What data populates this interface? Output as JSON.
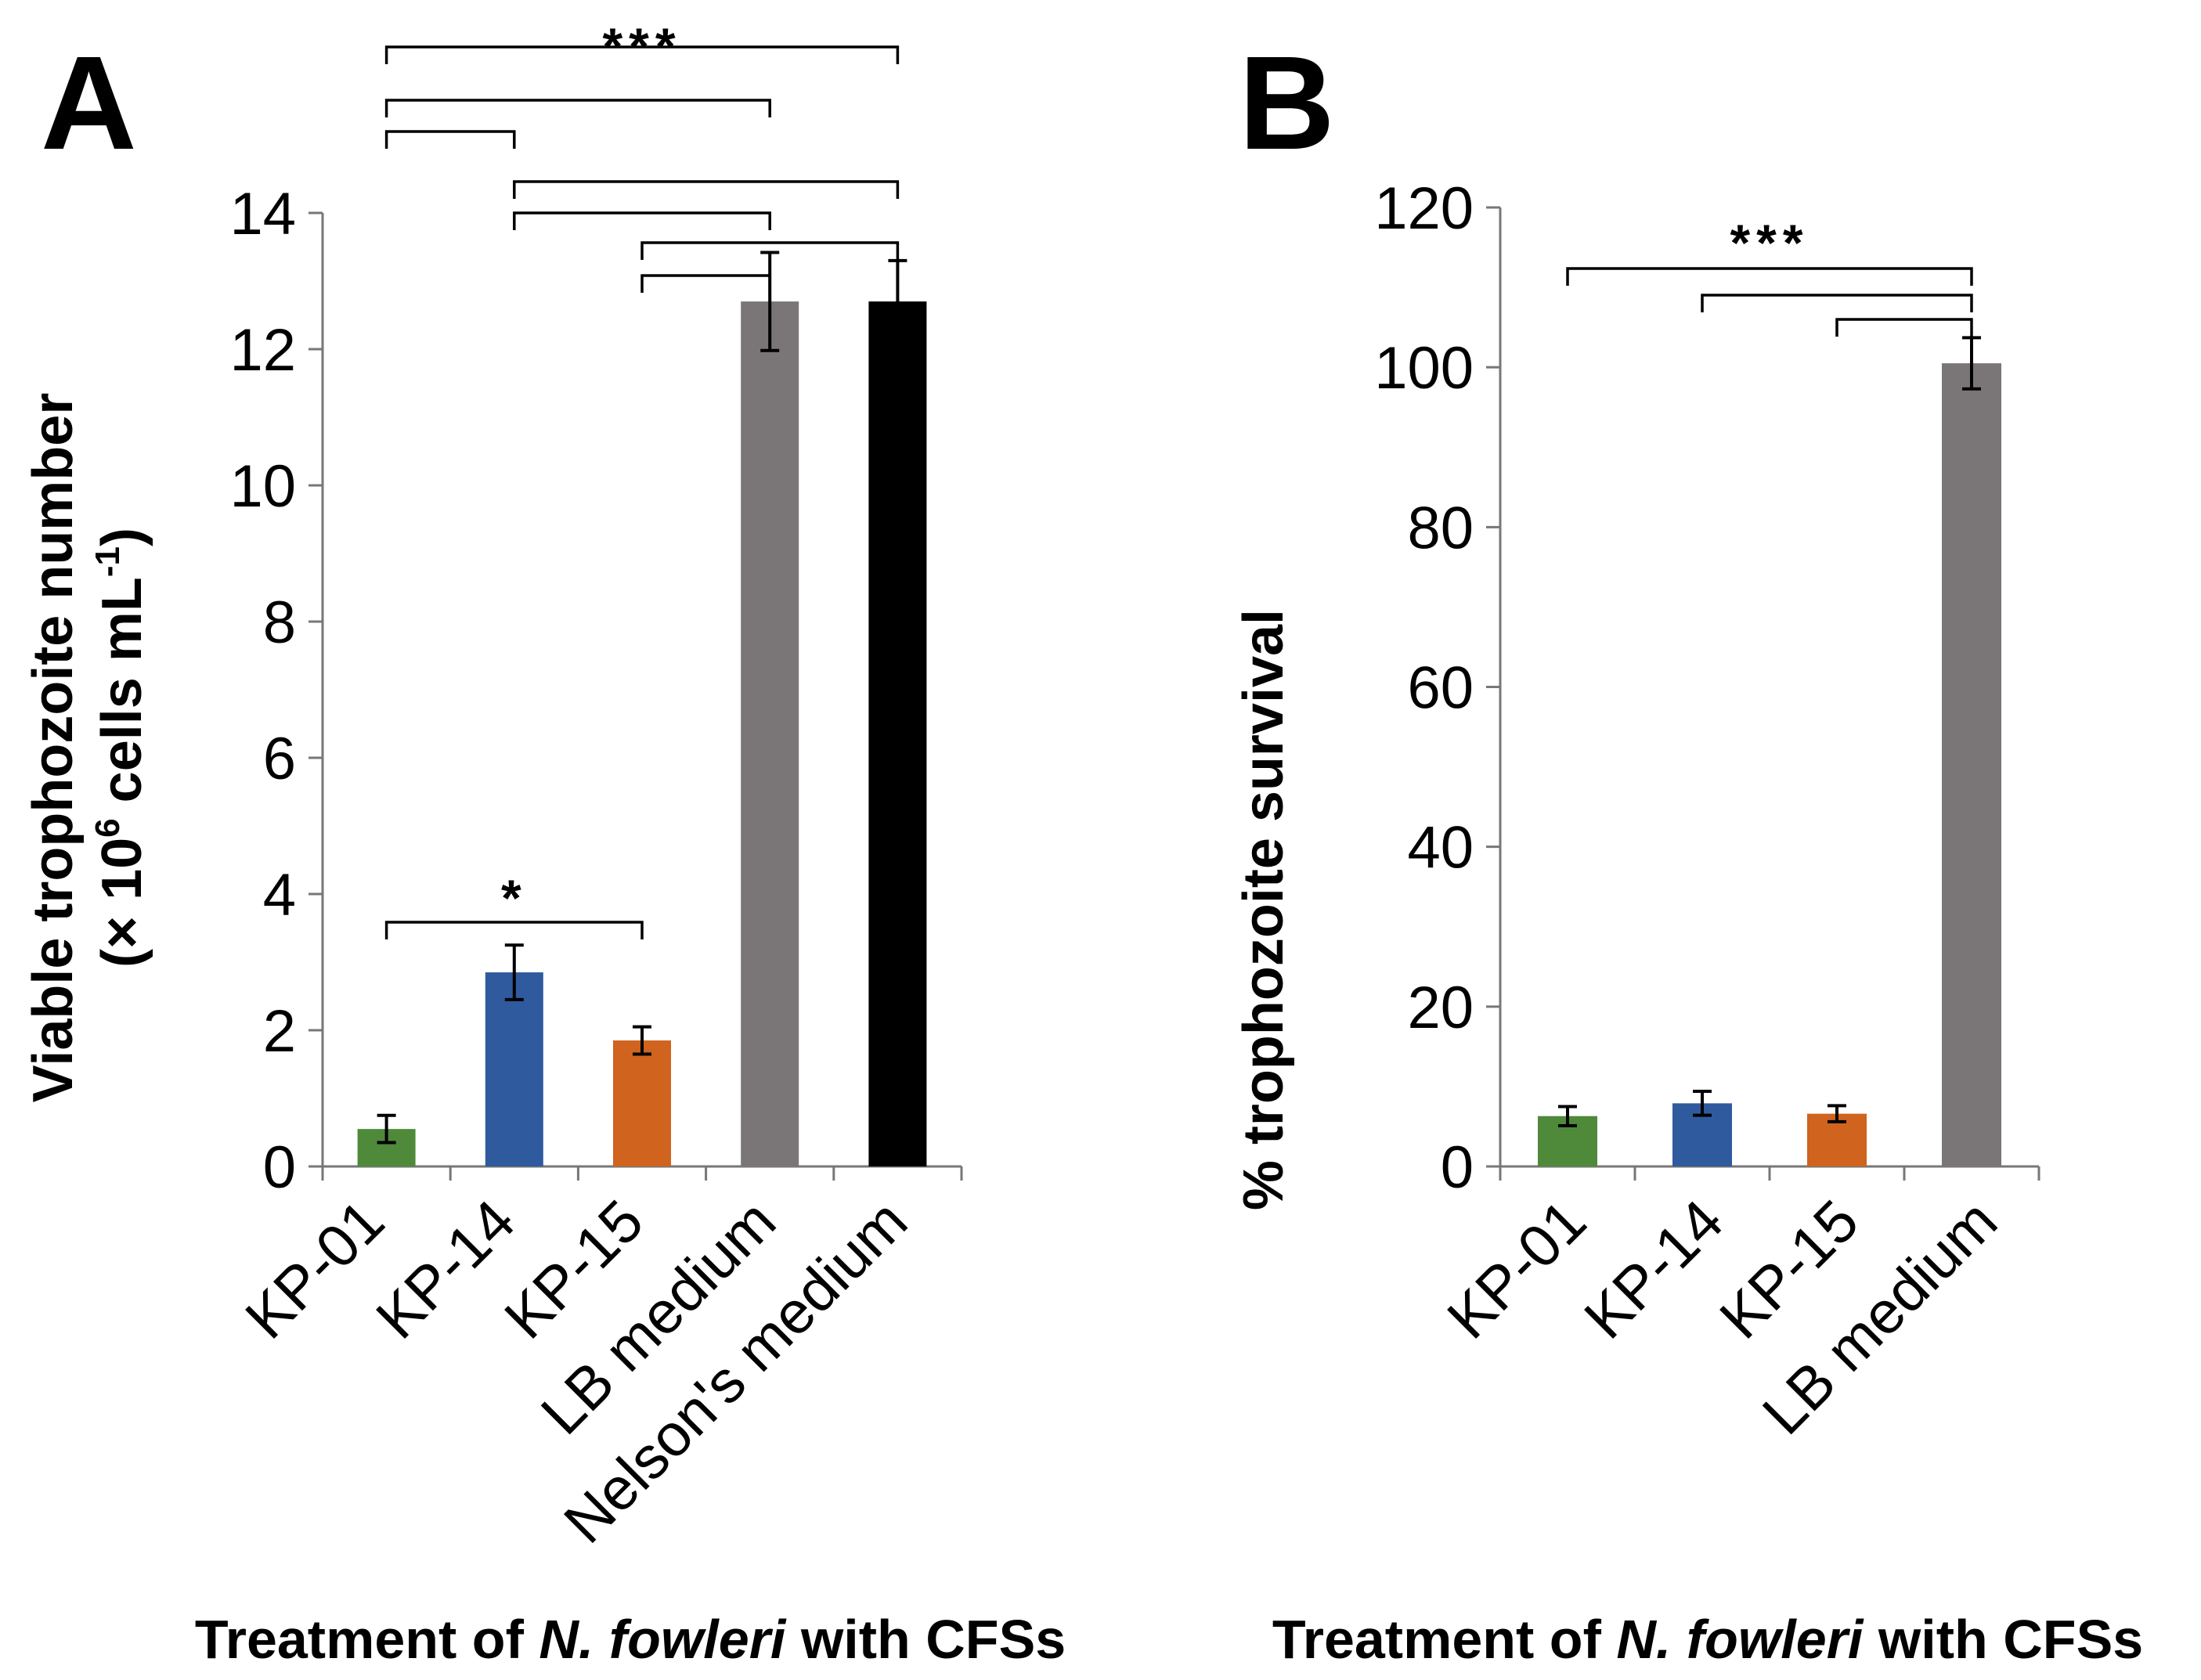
{
  "chart_data": [
    {
      "panel": "A",
      "type": "bar",
      "categories": [
        "KP-01",
        "KP-14",
        "KP-15",
        "LB medium",
        "Nelson's medium"
      ],
      "values": [
        0.55,
        2.85,
        1.85,
        12.7,
        12.7
      ],
      "errors": [
        0.2,
        0.4,
        0.2,
        0.72,
        0.6
      ],
      "colors": [
        "#4e8a3a",
        "#2f5a9e",
        "#d0631e",
        "#7a7677",
        "#000000"
      ],
      "ylabel_line1": "Viable trophozoite number",
      "ylabel_line2_pre": "(× 10",
      "ylabel_sup1": "6",
      "ylabel_line2_mid": " cells mL",
      "ylabel_sup2": "-1",
      "ylabel_line2_post": ")",
      "xlabel_pre": "Treatment of ",
      "xlabel_italic": "N. fowleri",
      "xlabel_post": " with CFSs",
      "ylim": [
        0,
        14
      ],
      "yticks": [
        "0",
        "2",
        "4",
        "6",
        "8",
        "10",
        "12",
        "14"
      ],
      "significance": [
        {
          "from": 0,
          "to": 4,
          "label": "***"
        },
        {
          "from": 0,
          "to": 3,
          "label": ""
        },
        {
          "from": 0,
          "to": 1,
          "label": ""
        },
        {
          "from": 1,
          "to": 4,
          "label": ""
        },
        {
          "from": 1,
          "to": 3,
          "label": ""
        },
        {
          "from": 2,
          "to": 4,
          "label": ""
        },
        {
          "from": 2,
          "to": 3,
          "label": ""
        },
        {
          "from": 0,
          "to": 2,
          "label": "*"
        }
      ]
    },
    {
      "panel": "B",
      "type": "bar",
      "categories": [
        "KP-01",
        "KP-14",
        "KP-15",
        "LB medium"
      ],
      "values": [
        6.3,
        7.9,
        6.6,
        100.5
      ],
      "errors": [
        1.2,
        1.5,
        1.0,
        3.2
      ],
      "colors": [
        "#4e8a3a",
        "#2f5a9e",
        "#d0631e",
        "#7a7677"
      ],
      "ylabel": "% trophozoite survival",
      "xlabel_pre": "Treatment of ",
      "xlabel_italic": "N. fowleri",
      "xlabel_post": " with CFSs",
      "ylim": [
        0,
        120
      ],
      "yticks": [
        "0",
        "20",
        "40",
        "60",
        "80",
        "100",
        "120"
      ],
      "significance": [
        {
          "from": 0,
          "to": 3,
          "label": "***"
        },
        {
          "from": 1,
          "to": 3,
          "label": ""
        },
        {
          "from": 2,
          "to": 3,
          "label": ""
        }
      ]
    }
  ]
}
